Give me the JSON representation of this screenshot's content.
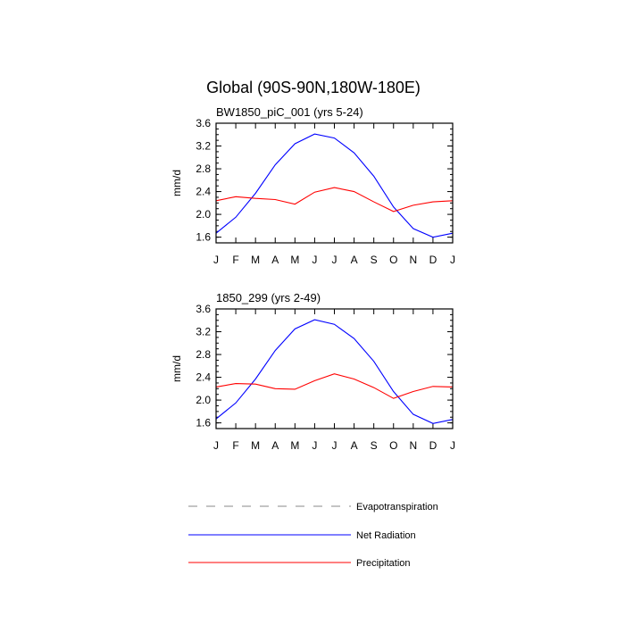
{
  "figure_title": "Global (90S-90N,180W-180E)",
  "chart_data": [
    {
      "type": "line",
      "title": "BW1850_piC_001 (yrs 5-24)",
      "xlabel": "",
      "ylabel": "mm/d",
      "ylim": [
        1.5,
        3.6
      ],
      "yticks": [
        "1.6",
        "2.0",
        "2.4",
        "2.8",
        "3.2",
        "3.6"
      ],
      "categories": [
        "J",
        "F",
        "M",
        "A",
        "M",
        "J",
        "J",
        "A",
        "S",
        "O",
        "N",
        "D",
        "J"
      ],
      "series": [
        {
          "name": "Net Radiation",
          "color": "#0000ff",
          "values": [
            1.67,
            1.95,
            2.37,
            2.87,
            3.24,
            3.41,
            3.34,
            3.08,
            2.67,
            2.13,
            1.75,
            1.6,
            1.67
          ]
        },
        {
          "name": "Precipitation",
          "color": "#ff0000",
          "values": [
            2.24,
            2.31,
            2.28,
            2.26,
            2.18,
            2.39,
            2.47,
            2.4,
            2.22,
            2.05,
            2.16,
            2.22,
            2.24
          ]
        }
      ]
    },
    {
      "type": "line",
      "title": "1850_299 (yrs 2-49)",
      "xlabel": "",
      "ylabel": "mm/d",
      "ylim": [
        1.5,
        3.6
      ],
      "yticks": [
        "1.6",
        "2.0",
        "2.4",
        "2.8",
        "3.2",
        "3.6"
      ],
      "categories": [
        "J",
        "F",
        "M",
        "A",
        "M",
        "J",
        "J",
        "A",
        "S",
        "O",
        "N",
        "D",
        "J"
      ],
      "series": [
        {
          "name": "Net Radiation",
          "color": "#0000ff",
          "values": [
            1.67,
            1.95,
            2.37,
            2.87,
            3.25,
            3.41,
            3.33,
            3.08,
            2.68,
            2.15,
            1.75,
            1.59,
            1.66
          ]
        },
        {
          "name": "Precipitation",
          "color": "#ff0000",
          "values": [
            2.23,
            2.29,
            2.28,
            2.2,
            2.19,
            2.34,
            2.46,
            2.37,
            2.22,
            2.03,
            2.15,
            2.24,
            2.23
          ]
        }
      ]
    }
  ],
  "legend": [
    {
      "label": "Evapotranspiration",
      "color": "#888888",
      "dashed": true
    },
    {
      "label": "Net Radiation",
      "color": "#0000ff",
      "dashed": false
    },
    {
      "label": "Precipitation",
      "color": "#ff0000",
      "dashed": false
    }
  ]
}
